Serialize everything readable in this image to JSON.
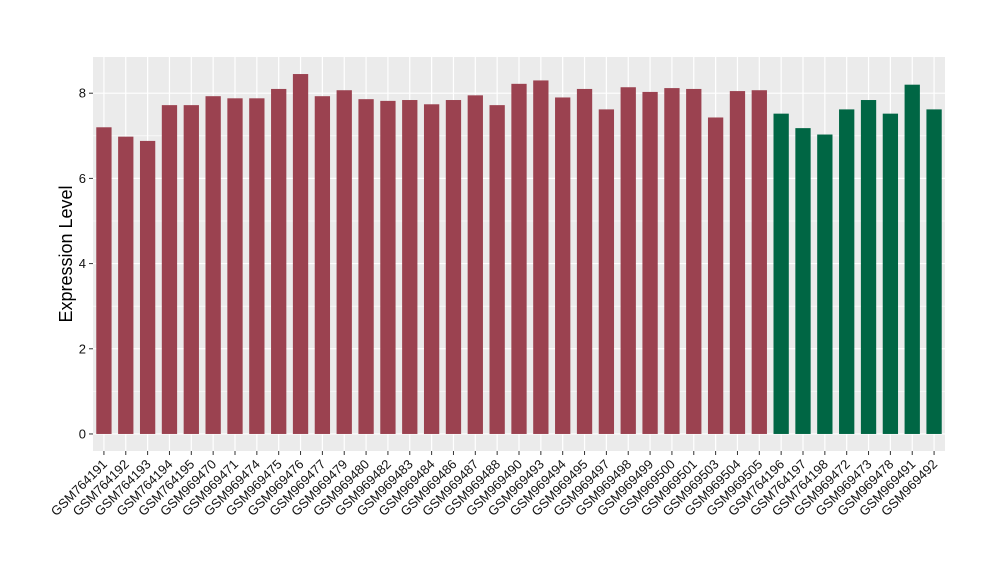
{
  "chart_data": {
    "type": "bar",
    "ylabel": "Expression Level",
    "xlabel": "",
    "ylim": [
      -0.4,
      8.85
    ],
    "yticks": [
      0,
      2,
      4,
      6,
      8
    ],
    "grid": true,
    "colors": {
      "group1": "#9b4250",
      "group2": "#006644",
      "panel": "#ebebeb",
      "grid": "#ffffff"
    },
    "categories": [
      "GSM764191",
      "GSM764192",
      "GSM764193",
      "GSM764194",
      "GSM764195",
      "GSM969470",
      "GSM969471",
      "GSM969474",
      "GSM969475",
      "GSM969476",
      "GSM969477",
      "GSM969479",
      "GSM969480",
      "GSM969482",
      "GSM969483",
      "GSM969484",
      "GSM969486",
      "GSM969487",
      "GSM969488",
      "GSM969490",
      "GSM969493",
      "GSM969494",
      "GSM969495",
      "GSM969497",
      "GSM969498",
      "GSM969499",
      "GSM969500",
      "GSM969501",
      "GSM969503",
      "GSM969504",
      "GSM969505",
      "GSM764196",
      "GSM764197",
      "GSM764198",
      "GSM969472",
      "GSM969473",
      "GSM969478",
      "GSM969491",
      "GSM969492"
    ],
    "values": [
      7.2,
      6.98,
      6.88,
      7.72,
      7.72,
      7.93,
      7.88,
      7.88,
      8.1,
      8.45,
      7.93,
      8.07,
      7.86,
      7.82,
      7.84,
      7.74,
      7.84,
      7.95,
      7.72,
      8.22,
      8.3,
      7.9,
      8.1,
      7.62,
      8.14,
      8.03,
      8.12,
      8.1,
      7.43,
      8.05,
      8.07,
      7.52,
      7.18,
      7.03,
      7.62,
      7.84,
      7.52,
      8.2,
      7.62
    ],
    "groups": [
      1,
      1,
      1,
      1,
      1,
      1,
      1,
      1,
      1,
      1,
      1,
      1,
      1,
      1,
      1,
      1,
      1,
      1,
      1,
      1,
      1,
      1,
      1,
      1,
      1,
      1,
      1,
      1,
      1,
      1,
      1,
      2,
      2,
      2,
      2,
      2,
      2,
      2,
      2
    ]
  }
}
